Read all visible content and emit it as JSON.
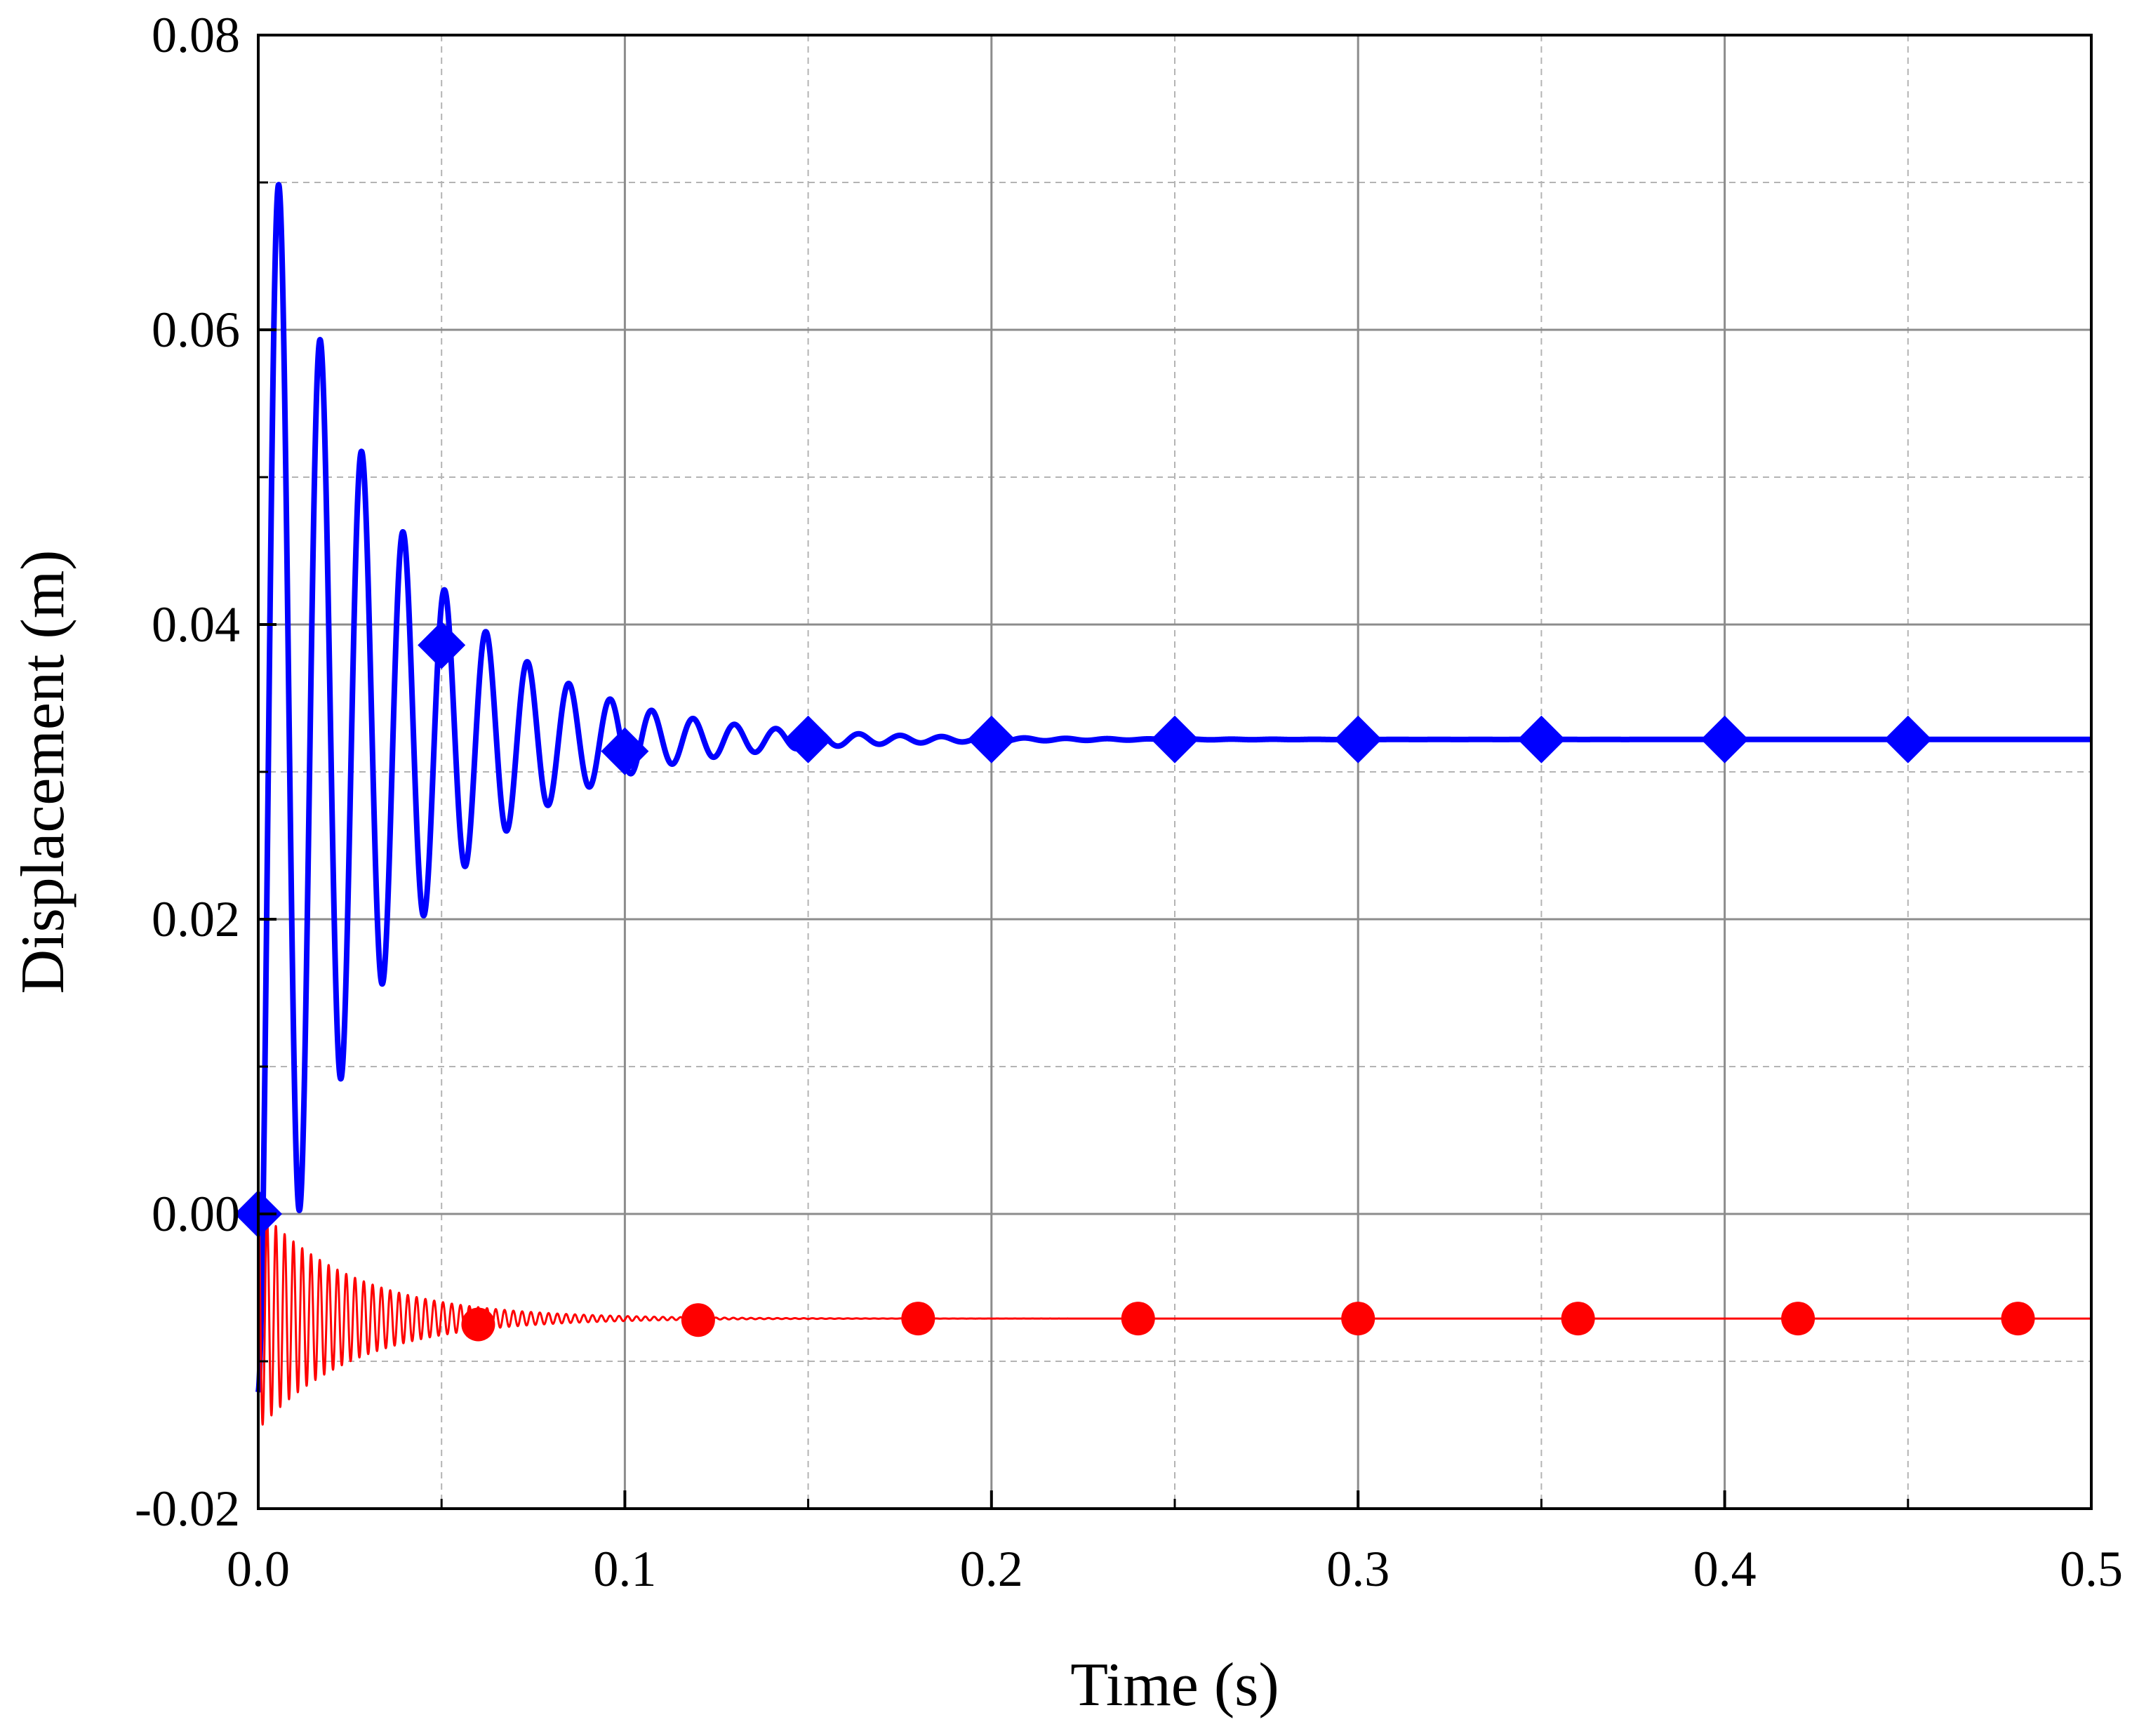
{
  "chart_data": {
    "type": "line",
    "title": "",
    "xlabel": "Time (s)",
    "ylabel": "Displacement (m)",
    "xlim": [
      0.0,
      0.5
    ],
    "ylim": [
      -0.02,
      0.08
    ],
    "grid": true,
    "legend": "none",
    "x_ticks": [
      "0.0",
      "0.1",
      "0.2",
      "0.3",
      "0.4",
      "0.5"
    ],
    "y_ticks": [
      "-0.02",
      "0.00",
      "0.02",
      "0.04",
      "0.06",
      "0.08"
    ],
    "series": [
      {
        "color": "#0000ff",
        "marker": "diamond",
        "response": {
          "type": "damped-oscillation",
          "steady_value": 0.0322,
          "first_peak": 0.0698,
          "period": 0.0113,
          "damping": 29
        },
        "marker_points": [
          {
            "x": 0.0,
            "y": 0.0
          },
          {
            "x": 0.05,
            "y": 0.0386
          },
          {
            "x": 0.1,
            "y": 0.0314
          },
          {
            "x": 0.15,
            "y": 0.0322
          },
          {
            "x": 0.2,
            "y": 0.0322
          },
          {
            "x": 0.25,
            "y": 0.0322
          },
          {
            "x": 0.3,
            "y": 0.0322
          },
          {
            "x": 0.35,
            "y": 0.0322
          },
          {
            "x": 0.4,
            "y": 0.0322
          },
          {
            "x": 0.45,
            "y": 0.0322
          }
        ]
      },
      {
        "color": "#ff0000",
        "marker": "circle",
        "response": {
          "type": "damped-oscillation",
          "steady_value": -0.0071,
          "first_peak": -0.0143,
          "period": 0.0024,
          "damping": 38
        },
        "marker_points": [
          {
            "x": 0.06,
            "y": -0.0075
          },
          {
            "x": 0.12,
            "y": -0.0072
          },
          {
            "x": 0.18,
            "y": -0.0071
          },
          {
            "x": 0.24,
            "y": -0.0071
          },
          {
            "x": 0.3,
            "y": -0.0071
          },
          {
            "x": 0.36,
            "y": -0.0071
          },
          {
            "x": 0.42,
            "y": -0.0071
          },
          {
            "x": 0.48,
            "y": -0.0071
          }
        ]
      }
    ]
  }
}
